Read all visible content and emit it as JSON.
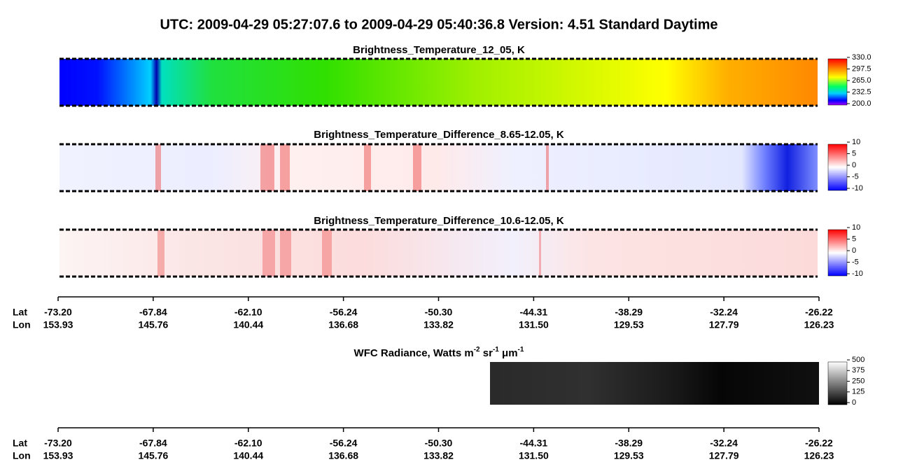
{
  "title": "UTC:  2009-04-29   05:27:07.6  to  2009-04-29   05:40:36.8    Version: 4.51  Standard Daytime",
  "panels": [
    {
      "title": "Brightness_Temperature_12_05, K",
      "colorbar_ticks": [
        "330.0",
        "297.5",
        "265.0",
        "232.5",
        "200.0"
      ]
    },
    {
      "title": "Brightness_Temperature_Difference_8.65-12.05, K",
      "colorbar_ticks": [
        "10",
        "5",
        "0",
        "-5",
        "-10"
      ]
    },
    {
      "title": "Brightness_Temperature_Difference_10.6-12.05, K",
      "colorbar_ticks": [
        "10",
        "5",
        "0",
        "-5",
        "-10"
      ]
    }
  ],
  "axis": {
    "lat_label": "Lat",
    "lon_label": "Lon",
    "lat": [
      "-73.20",
      "-67.84",
      "-62.10",
      "-56.24",
      "-50.30",
      "-44.31",
      "-38.29",
      "-32.24",
      "-26.22"
    ],
    "lon": [
      "153.93",
      "145.76",
      "140.44",
      "136.68",
      "133.82",
      "131.50",
      "129.53",
      "127.79",
      "126.23"
    ]
  },
  "wfc": {
    "title": [
      "WFC Radiance, Watts m",
      "-2",
      " sr",
      "-1",
      " μm",
      "-1"
    ],
    "colorbar_ticks": [
      "500",
      "375",
      "250",
      "125",
      "0"
    ]
  }
}
